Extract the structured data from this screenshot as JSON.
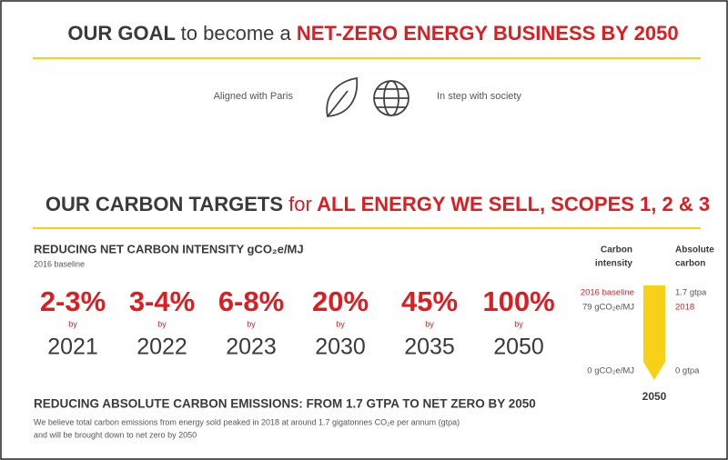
{
  "header": {
    "lead": "OUR GOAL",
    "middle": "to become a",
    "highlight": "NET-ZERO ENERGY BUSINESS BY 2050"
  },
  "alignment": [
    "Aligned with Paris",
    "In step with society"
  ],
  "targets_heading": {
    "lead": "OUR CARBON TARGETS",
    "middle": "for",
    "highlight": "ALL ENERGY WE SELL, SCOPES 1, 2 & 3"
  },
  "intensity": {
    "title": "REDUCING NET CARBON INTENSITY gCO₂e/MJ",
    "note": "2016 baseline",
    "targets": [
      {
        "reduction": "2-3%",
        "by": "by",
        "year": "2021"
      },
      {
        "reduction": "3-4%",
        "by": "by",
        "year": "2022"
      },
      {
        "reduction": "6-8%",
        "by": "by",
        "year": "2023"
      },
      {
        "reduction": "20%",
        "by": "by",
        "year": "2030"
      },
      {
        "reduction": "45%",
        "by": "by",
        "year": "2035"
      },
      {
        "reduction": "100%",
        "by": "by",
        "year": "2050"
      }
    ]
  },
  "side_panel": {
    "intensity_header": [
      "Carbon",
      "intensity"
    ],
    "absolute_header": [
      "Absolute",
      "carbon"
    ],
    "baseline_label": "2016 baseline",
    "baseline_value": "79 gCO₂e/MJ",
    "absolute_value": "1.7 gtpa",
    "absolute_year": "2018",
    "intensity_end": "0 gCO₂e/MJ",
    "absolute_end": "0 gtpa",
    "end_year": "2050"
  },
  "emissions": {
    "title": "REDUCING ABSOLUTE CARBON EMISSIONS: FROM 1.7 GTPA TO NET ZERO BY 2050",
    "body": [
      "We believe total carbon emissions from energy sold peaked in 2018 at around 1.7 gigatonnes CO₂e per annum (gtpa)",
      "and will be brought down to net zero by 2050"
    ]
  }
}
